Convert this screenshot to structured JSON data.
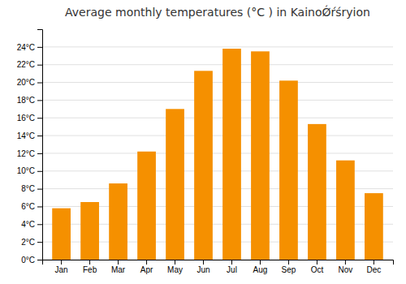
{
  "chart_data": {
    "type": "bar",
    "title": "Average monthly temperatures (°C ) in KainoǾŕśryion",
    "categories": [
      "Jan",
      "Feb",
      "Mar",
      "Apr",
      "May",
      "Jun",
      "Jul",
      "Aug",
      "Sep",
      "Oct",
      "Nov",
      "Dec"
    ],
    "values": [
      5.8,
      6.5,
      8.6,
      12.2,
      17.0,
      21.3,
      23.8,
      23.5,
      20.2,
      15.3,
      11.2,
      7.5
    ],
    "color": "#F59000",
    "ylim": [
      0,
      26
    ],
    "yticks": [
      {
        "value": 0,
        "label": "0°C"
      },
      {
        "value": 2,
        "label": "2°C"
      },
      {
        "value": 4,
        "label": "4°C"
      },
      {
        "value": 6,
        "label": "6°C"
      },
      {
        "value": 8,
        "label": "8°C"
      },
      {
        "value": 10,
        "label": "10°C"
      },
      {
        "value": 12,
        "label": "12°C"
      },
      {
        "value": 14,
        "label": "14°C"
      },
      {
        "value": 16,
        "label": "16°C"
      },
      {
        "value": 18,
        "label": "18°C"
      },
      {
        "value": 20,
        "label": "20°C"
      },
      {
        "value": 22,
        "label": "22°C"
      },
      {
        "value": 24,
        "label": "24°C"
      }
    ],
    "grid": true
  }
}
